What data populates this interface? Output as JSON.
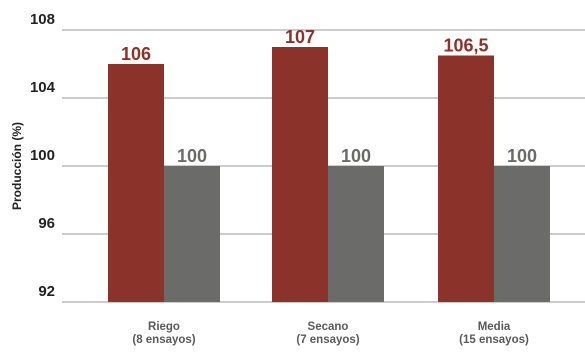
{
  "chart_data": {
    "type": "bar",
    "title": "",
    "xlabel": "",
    "ylabel": "Producción (%)",
    "ylim": [
      92,
      108
    ],
    "yticks": [
      92,
      96,
      100,
      104,
      108
    ],
    "grid": true,
    "legend": "none",
    "categories": [
      [
        "Riego",
        "(8 ensayos)"
      ],
      [
        "Secano",
        "(7 ensayos)"
      ],
      [
        "Media",
        "(15 ensayos)"
      ]
    ],
    "series": [
      {
        "values": [
          106,
          107,
          106.5
        ],
        "labels": [
          "106",
          "107",
          "106,5"
        ],
        "color": "#8b322a"
      },
      {
        "values": [
          100,
          100,
          100
        ],
        "labels": [
          "100",
          "100",
          "100"
        ],
        "color": "#6b6b69"
      }
    ],
    "colors": {
      "grid": "#cccccc",
      "tick_text": "#222222",
      "category_text": "#5a5a5a"
    }
  }
}
